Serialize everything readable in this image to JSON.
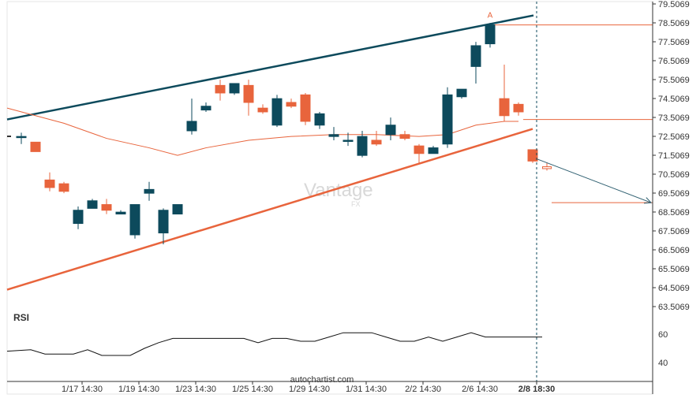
{
  "chart_data": {
    "type": "candlestick",
    "title": "",
    "watermark": "Vantage",
    "watermark_sub": "FX",
    "footer": "autochartist.com",
    "pattern_point_label": "A",
    "y_ticks": [
      79.5069,
      78.5069,
      77.5069,
      76.5069,
      75.5069,
      74.5069,
      73.5069,
      72.5069,
      71.5069,
      70.5069,
      69.5069,
      68.5069,
      67.5069,
      66.5069,
      65.5069,
      64.5069,
      63.5069
    ],
    "y_tick_labels": [
      "79.5069",
      "78.5069",
      "77.5069",
      "76.5069",
      "75.5069",
      "74.5069",
      "73.5069",
      "72.5069",
      "71.5069",
      "70.5069",
      "69.5069",
      "68.5069",
      "67.5069",
      "66.5069",
      "65.5069",
      "64.5069",
      "63.5069"
    ],
    "x_tick_labels": [
      "1/17 14:30",
      "1/19 14:30",
      "1/23 14:30",
      "1/25 14:30",
      "1/29 14:30",
      "1/31 14:30",
      "2/2 14:30",
      "2/6 14:30",
      "2/8 18:30"
    ],
    "x_tick_index": [
      4,
      8,
      12,
      16,
      20,
      24,
      28,
      32,
      36
    ],
    "colors": {
      "bull": "#0d4a5c",
      "bear": "#e8643c",
      "upper_line": "#0d4a5c",
      "lower_line": "#e8643c",
      "level": "#e8643c",
      "ma": "#e8643c",
      "forecast": "#2e5f70",
      "rsi": "#111111",
      "axis": "#333333"
    },
    "candles": [
      {
        "o": 72.5,
        "h": 72.7,
        "l": 72.1,
        "c": 72.5
      },
      {
        "o": 72.2,
        "h": 72.2,
        "l": 71.7,
        "c": 71.7
      },
      {
        "o": 70.2,
        "h": 70.6,
        "l": 69.6,
        "c": 69.8
      },
      {
        "o": 70.0,
        "h": 70.1,
        "l": 69.5,
        "c": 69.6
      },
      {
        "o": 67.9,
        "h": 68.8,
        "l": 67.6,
        "c": 68.6
      },
      {
        "o": 68.7,
        "h": 69.2,
        "l": 68.7,
        "c": 69.1
      },
      {
        "o": 68.9,
        "h": 69.2,
        "l": 68.4,
        "c": 68.6
      },
      {
        "o": 68.4,
        "h": 68.6,
        "l": 68.4,
        "c": 68.5
      },
      {
        "o": 67.3,
        "h": 68.9,
        "l": 67.1,
        "c": 68.9
      },
      {
        "o": 69.5,
        "h": 70.1,
        "l": 69.1,
        "c": 69.7
      },
      {
        "o": 67.4,
        "h": 68.7,
        "l": 66.8,
        "c": 68.6
      },
      {
        "o": 68.4,
        "h": 68.9,
        "l": 68.4,
        "c": 68.9
      },
      {
        "o": 72.8,
        "h": 74.5,
        "l": 72.6,
        "c": 73.3
      },
      {
        "o": 73.9,
        "h": 74.3,
        "l": 73.8,
        "c": 74.1
      },
      {
        "o": 75.2,
        "h": 75.5,
        "l": 74.4,
        "c": 74.8
      },
      {
        "o": 74.8,
        "h": 75.2,
        "l": 74.7,
        "c": 75.3
      },
      {
        "o": 75.2,
        "h": 75.5,
        "l": 73.6,
        "c": 74.3
      },
      {
        "o": 74.0,
        "h": 74.2,
        "l": 73.7,
        "c": 73.8
      },
      {
        "o": 73.1,
        "h": 74.7,
        "l": 73.0,
        "c": 74.5
      },
      {
        "o": 74.3,
        "h": 74.5,
        "l": 74.0,
        "c": 74.1
      },
      {
        "o": 74.7,
        "h": 74.8,
        "l": 73.1,
        "c": 73.3
      },
      {
        "o": 73.1,
        "h": 73.8,
        "l": 72.9,
        "c": 73.7
      },
      {
        "o": 72.5,
        "h": 73.0,
        "l": 72.3,
        "c": 72.6
      },
      {
        "o": 72.3,
        "h": 72.7,
        "l": 72.0,
        "c": 72.3
      },
      {
        "o": 71.5,
        "h": 72.8,
        "l": 71.4,
        "c": 72.5
      },
      {
        "o": 72.3,
        "h": 72.8,
        "l": 72.0,
        "c": 72.1
      },
      {
        "o": 72.6,
        "h": 73.5,
        "l": 72.3,
        "c": 73.1
      },
      {
        "o": 72.6,
        "h": 72.8,
        "l": 72.3,
        "c": 72.4
      },
      {
        "o": 72.0,
        "h": 72.1,
        "l": 71.1,
        "c": 71.6
      },
      {
        "o": 71.6,
        "h": 72.0,
        "l": 71.6,
        "c": 71.9
      },
      {
        "o": 72.1,
        "h": 75.1,
        "l": 71.9,
        "c": 74.7
      },
      {
        "o": 74.6,
        "h": 75.0,
        "l": 74.5,
        "c": 75.0
      },
      {
        "o": 76.2,
        "h": 77.5,
        "l": 75.3,
        "c": 77.3
      },
      {
        "o": 77.4,
        "h": 78.5,
        "l": 77.2,
        "c": 78.4
      },
      {
        "o": 74.5,
        "h": 76.3,
        "l": 73.3,
        "c": 73.6
      },
      {
        "o": 74.2,
        "h": 74.3,
        "l": 73.6,
        "c": 73.8
      },
      {
        "o": 71.8,
        "h": 71.8,
        "l": 71.1,
        "c": 71.2
      },
      {
        "o": 70.9,
        "h": 71.1,
        "l": 70.7,
        "c": 70.8
      }
    ],
    "moving_average": {
      "x": [
        0,
        3,
        6,
        9,
        11,
        13,
        16,
        19,
        22,
        25,
        28,
        30,
        32,
        34,
        35
      ],
      "y": [
        74.0,
        73.2,
        72.4,
        71.9,
        71.5,
        71.9,
        72.3,
        72.5,
        72.6,
        72.6,
        72.5,
        72.6,
        73.1,
        73.3,
        73.3
      ]
    },
    "channel_upper": {
      "x0": 0,
      "y0": 73.4,
      "x1": 36,
      "y1": 78.9
    },
    "channel_lower": {
      "x0": 0,
      "y0": 64.4,
      "x1": 36,
      "y1": 72.9
    },
    "level_resistance": {
      "x0": 33,
      "x1": 46,
      "y": 78.4
    },
    "level_mid": {
      "x0": 35,
      "x1": 46,
      "y": 73.4
    },
    "level_target": {
      "x0": 37,
      "x1": 46,
      "y": 69.0
    },
    "forecast_arrow": {
      "x0": 36,
      "y0": 71.3,
      "x1": 44,
      "y1": 69.0
    },
    "current_time_index": 36,
    "rsi": {
      "label": "RSI",
      "ticks": [
        60,
        40
      ],
      "tick_labels": [
        "60",
        "40"
      ],
      "x": [
        0,
        1,
        2,
        3,
        4,
        5,
        6,
        7,
        8,
        9,
        10,
        11,
        12,
        13,
        14,
        15,
        16,
        17,
        18,
        19,
        20,
        21,
        22,
        23,
        24,
        25,
        26,
        27,
        28,
        29,
        30,
        31,
        32,
        33,
        34,
        35,
        36,
        37
      ],
      "y": [
        48,
        49,
        46,
        46,
        46,
        49,
        45,
        45,
        45,
        50,
        54,
        57,
        57,
        57,
        57,
        57,
        57,
        54,
        57,
        57,
        55,
        55,
        58,
        61,
        61,
        61,
        58,
        55,
        55,
        58,
        55,
        58,
        61,
        58,
        58,
        58,
        58,
        58
      ]
    }
  }
}
